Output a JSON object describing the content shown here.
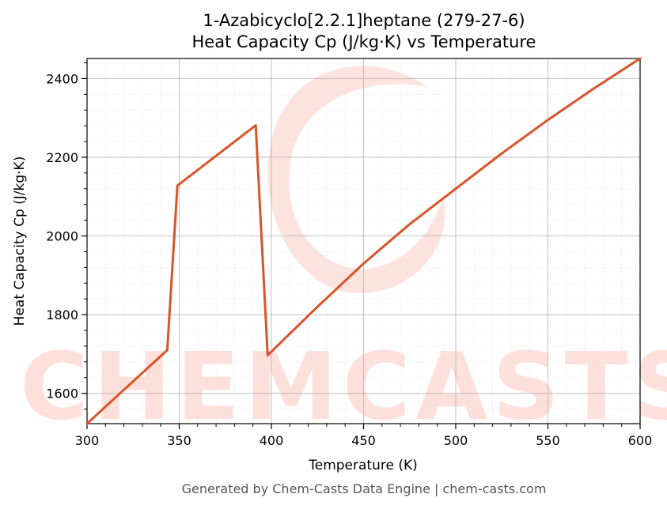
{
  "chart_data": {
    "type": "line",
    "title_line1": "1-Azabicyclo[2.2.1]heptane (279-27-6)",
    "title_line2": "Heat Capacity Cp (J/kg·K) vs Temperature",
    "xlabel": "Temperature (K)",
    "ylabel": "Heat Capacity Cp (J/kg·K)",
    "xlim": [
      300,
      600
    ],
    "ylim": [
      1523,
      2451
    ],
    "xticks": [
      300,
      350,
      400,
      450,
      500,
      550,
      600
    ],
    "yticks": [
      1600,
      1800,
      2000,
      2200,
      2400
    ],
    "grid": true,
    "series": [
      {
        "color": "#d9542a",
        "x": [
          300,
          343.5,
          349,
          391.5,
          398,
          425,
          450,
          475,
          500,
          525,
          550,
          575,
          600
        ],
        "y": [
          1523,
          1710,
          2128,
          2281,
          1697,
          1820,
          1930,
          2030,
          2120,
          2210,
          2295,
          2375,
          2451
        ]
      }
    ]
  },
  "watermark": {
    "text": "CHEMCASTS",
    "color": "#fde0da"
  },
  "footer": "Generated by Chem-Casts Data Engine | chem-casts.com"
}
